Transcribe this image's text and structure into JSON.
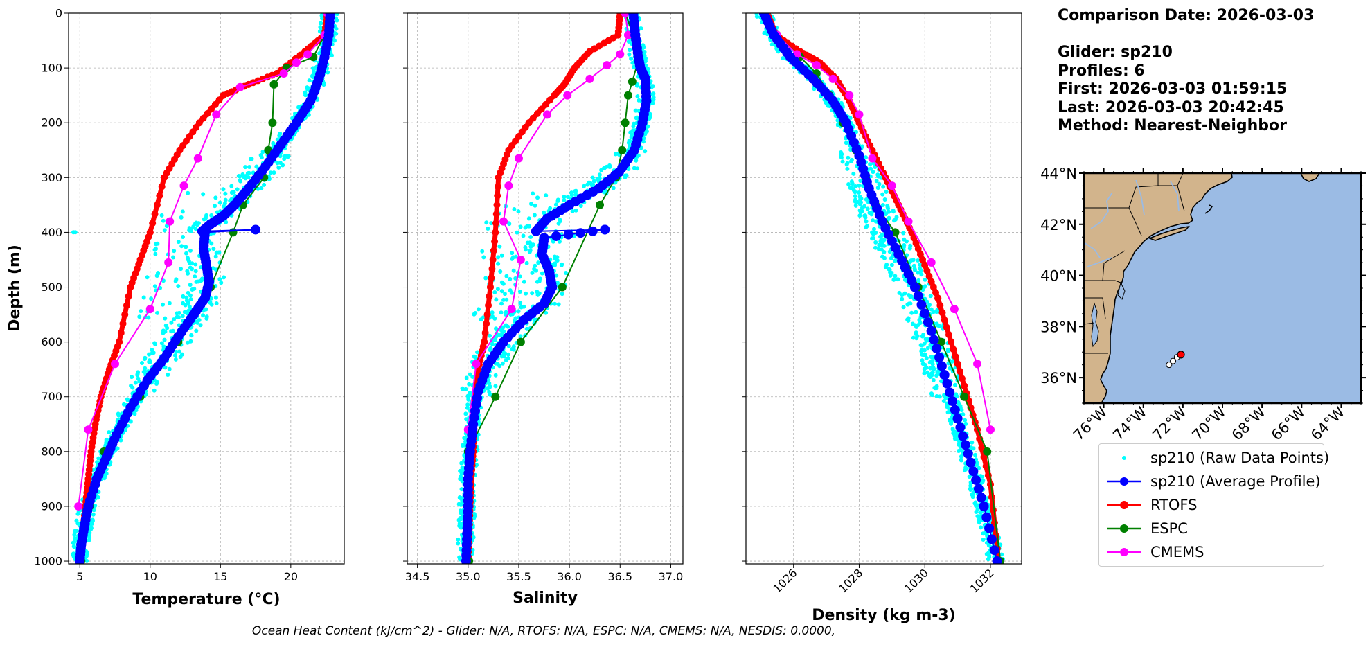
{
  "info": {
    "comparison_date": "Comparison Date: 2026-03-03",
    "glider": "Glider: sp210",
    "profiles": "Profiles: 6",
    "first": "First: 2026-03-03 01:59:15",
    "last": "Last: 2026-03-03 20:42:45",
    "method": "Method: Nearest-Neighbor"
  },
  "legend": [
    {
      "label": "sp210 (Raw Data Points)",
      "color": "#00ffff",
      "style": "dot"
    },
    {
      "label": "sp210 (Average Profile)",
      "color": "#0000ff",
      "style": "line-marker"
    },
    {
      "label": "RTOFS",
      "color": "#ff0000",
      "style": "line-marker"
    },
    {
      "label": "ESPC",
      "color": "#008000",
      "style": "line-marker"
    },
    {
      "label": "CMEMS",
      "color": "#ff00ff",
      "style": "line-marker"
    }
  ],
  "footer": "Ocean Heat Content (kJ/cm^2) - Glider: N/A,  RTOFS: N/A,  ESPC: N/A,  CMEMS: N/A,  NESDIS: 0.0000,",
  "colors": {
    "raw": "#00ffff",
    "glider": "#0000ff",
    "rtofs": "#ff0000",
    "espc": "#008000",
    "cmems": "#ff00ff",
    "land": "#d2b48c",
    "ocean": "#9bbbe4",
    "grid": "#b0b0b0"
  },
  "chart_data": [
    {
      "type": "line",
      "xlabel": "Temperature (°C)",
      "ylabel": "Depth (m)",
      "xlim": [
        4.2,
        23.8
      ],
      "ylim": [
        1005,
        0
      ],
      "xticks": [
        5,
        10,
        15,
        20
      ],
      "yticks": [
        0,
        100,
        200,
        300,
        400,
        500,
        600,
        700,
        800,
        900,
        1000
      ],
      "grid": true,
      "series": [
        {
          "name": "sp210 (Average Profile)",
          "key": "glider",
          "x": [
            22.8,
            22.7,
            22.4,
            22.0,
            21.4,
            20.4,
            19.3,
            18.2,
            17.0,
            16.0,
            15.2,
            14.3,
            13.7,
            17.5,
            13.9,
            13.8,
            14.0,
            14.2,
            13.9,
            13.1,
            12.0,
            11.0,
            9.8,
            8.6,
            7.6,
            6.9,
            6.2,
            5.6,
            5.3,
            5.1,
            5.0
          ],
          "y": [
            0,
            40,
            80,
            120,
            160,
            200,
            240,
            280,
            320,
            350,
            370,
            385,
            398,
            395,
            400,
            430,
            460,
            490,
            520,
            550,
            590,
            630,
            670,
            720,
            770,
            810,
            850,
            900,
            940,
            970,
            1000
          ]
        },
        {
          "name": "RTOFS",
          "key": "rtofs",
          "x": [
            22.6,
            22.4,
            21.0,
            19.0,
            17.0,
            15.2,
            13.5,
            12.1,
            11.0,
            10.0,
            9.3,
            8.6,
            7.8,
            7.1,
            6.5,
            6.1,
            5.8,
            5.6,
            5.4,
            5.2,
            5.0
          ],
          "y": [
            0,
            40,
            70,
            110,
            130,
            150,
            200,
            250,
            300,
            400,
            450,
            500,
            600,
            650,
            700,
            750,
            800,
            850,
            900,
            950,
            1000
          ]
        },
        {
          "name": "ESPC",
          "key": "espc",
          "x": [
            22.6,
            22.4,
            21.6,
            19.7,
            18.8,
            18.7,
            18.4,
            18.1,
            16.6,
            15.9,
            14.3,
            12.0,
            9.3,
            6.7,
            5.7,
            5.1
          ],
          "y": [
            0,
            40,
            80,
            100,
            130,
            200,
            250,
            300,
            350,
            400,
            500,
            600,
            700,
            800,
            900,
            1000
          ]
        },
        {
          "name": "CMEMS",
          "key": "cmems",
          "x": [
            22.6,
            22.4,
            21.2,
            20.4,
            19.5,
            16.4,
            14.7,
            13.4,
            12.4,
            11.4,
            11.3,
            10.0,
            7.5,
            5.6,
            4.9
          ],
          "y": [
            0,
            40,
            75,
            90,
            110,
            135,
            185,
            265,
            315,
            380,
            455,
            540,
            640,
            760,
            900
          ]
        }
      ]
    },
    {
      "type": "line",
      "xlabel": "Salinity",
      "ylabel": "",
      "xlim": [
        34.4,
        37.12
      ],
      "ylim": [
        1005,
        0
      ],
      "xticks": [
        34.5,
        35.0,
        35.5,
        36.0,
        36.5,
        37.0
      ],
      "yticks": [
        0,
        100,
        200,
        300,
        400,
        500,
        600,
        700,
        800,
        900,
        1000
      ],
      "grid": true,
      "series": [
        {
          "name": "sp210 (Average Profile)",
          "key": "glider",
          "x": [
            36.63,
            36.65,
            36.68,
            36.7,
            36.75,
            36.76,
            36.72,
            36.64,
            36.49,
            36.29,
            36.0,
            35.78,
            35.67,
            36.35,
            35.75,
            35.73,
            35.8,
            35.83,
            35.75,
            35.55,
            35.35,
            35.2,
            35.1,
            35.05,
            35.02,
            35.0,
            35.0,
            34.99,
            34.98
          ],
          "y": [
            0,
            40,
            80,
            100,
            120,
            160,
            200,
            250,
            290,
            320,
            350,
            375,
            398,
            395,
            410,
            440,
            470,
            500,
            530,
            560,
            600,
            640,
            690,
            750,
            800,
            850,
            900,
            950,
            1000
          ]
        },
        {
          "name": "RTOFS",
          "key": "rtofs",
          "x": [
            36.5,
            36.48,
            36.2,
            36.05,
            35.95,
            35.85,
            35.6,
            35.4,
            35.3,
            35.27,
            35.22,
            35.16,
            35.1,
            35.07,
            35.06,
            35.05,
            35.03,
            35.02,
            35.01,
            35.0
          ],
          "y": [
            0,
            40,
            70,
            100,
            130,
            150,
            200,
            250,
            300,
            400,
            500,
            600,
            650,
            700,
            750,
            800,
            850,
            900,
            950,
            1000
          ]
        },
        {
          "name": "ESPC",
          "key": "espc",
          "x": [
            36.55,
            36.63,
            36.69,
            36.62,
            36.58,
            36.55,
            36.52,
            36.46,
            36.3,
            35.93,
            35.52,
            35.27,
            35.0,
            35.0,
            35.01
          ],
          "y": [
            0,
            40,
            80,
            125,
            150,
            200,
            250,
            300,
            350,
            500,
            600,
            700,
            800,
            900,
            1000
          ]
        },
        {
          "name": "CMEMS",
          "key": "cmems",
          "x": [
            36.55,
            36.58,
            36.5,
            36.37,
            36.2,
            35.98,
            35.78,
            35.5,
            35.4,
            35.35,
            35.52,
            35.43,
            35.08,
            35.0,
            35.0
          ],
          "y": [
            0,
            40,
            75,
            95,
            120,
            150,
            185,
            265,
            315,
            380,
            450,
            540,
            640,
            760,
            900
          ]
        }
      ]
    },
    {
      "type": "line",
      "xlabel": "Density (kg m-3)",
      "ylabel": "",
      "xlim": [
        1024.55,
        1032.95
      ],
      "ylim": [
        1005,
        0
      ],
      "xticks": [
        1026,
        1028,
        1030,
        1032
      ],
      "yticks": [
        0,
        100,
        200,
        300,
        400,
        500,
        600,
        700,
        800,
        900,
        1000
      ],
      "grid": true,
      "series": [
        {
          "name": "sp210 (Average Profile)",
          "key": "glider",
          "x": [
            1025.1,
            1025.4,
            1025.9,
            1026.6,
            1027.2,
            1027.6,
            1028.0,
            1028.3,
            1028.7,
            1029.2,
            1029.7,
            1030.2,
            1030.6,
            1031.0,
            1031.4,
            1031.8,
            1032.2
          ],
          "y": [
            0,
            40,
            80,
            120,
            160,
            200,
            260,
            320,
            380,
            440,
            500,
            580,
            660,
            740,
            820,
            900,
            1000
          ]
        },
        {
          "name": "RTOFS",
          "key": "rtofs",
          "x": [
            1025.2,
            1025.45,
            1026.2,
            1026.8,
            1027.3,
            1027.7,
            1028.0,
            1028.4,
            1028.8,
            1029.2,
            1029.6,
            1030.0,
            1030.4,
            1030.8,
            1031.2,
            1031.6,
            1032.0,
            1032.25
          ],
          "y": [
            0,
            40,
            70,
            90,
            120,
            160,
            200,
            250,
            300,
            350,
            400,
            460,
            520,
            600,
            680,
            760,
            860,
            1000
          ]
        },
        {
          "name": "ESPC",
          "key": "espc",
          "x": [
            1025.1,
            1025.5,
            1026.2,
            1026.7,
            1027.1,
            1027.5,
            1027.9,
            1028.2,
            1028.5,
            1029.1,
            1029.8,
            1030.5,
            1031.2,
            1031.9,
            1032.3
          ],
          "y": [
            0,
            40,
            80,
            110,
            150,
            200,
            250,
            300,
            350,
            400,
            500,
            600,
            700,
            800,
            1000
          ]
        },
        {
          "name": "CMEMS",
          "key": "cmems",
          "x": [
            1025.15,
            1025.5,
            1026.1,
            1026.7,
            1027.2,
            1027.7,
            1028.0,
            1028.4,
            1029.0,
            1029.5,
            1030.2,
            1030.9,
            1031.6,
            1032.0
          ],
          "y": [
            0,
            40,
            75,
            95,
            120,
            150,
            185,
            265,
            315,
            380,
            455,
            540,
            640,
            760
          ]
        }
      ]
    }
  ],
  "map": {
    "lon_ticks": [
      "76°W",
      "74°W",
      "72°W",
      "70°W",
      "68°W",
      "66°W",
      "64°W"
    ],
    "lat_ticks": [
      "44°N",
      "42°N",
      "40°N",
      "38°N",
      "36°N"
    ],
    "glider_track": [
      {
        "lon": -72.1,
        "lat": 36.9
      },
      {
        "lon": -72.3,
        "lat": 36.8
      },
      {
        "lon": -72.5,
        "lat": 36.65
      },
      {
        "lon": -72.7,
        "lat": 36.5
      }
    ]
  }
}
